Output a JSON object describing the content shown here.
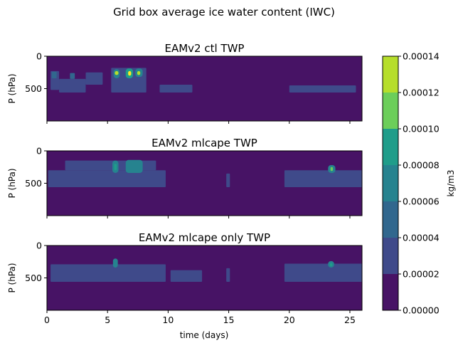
{
  "chart_data": {
    "type": "heatmap",
    "title": "Grid box average ice water content (IWC)",
    "panels": [
      {
        "title": "EAMv2 ctl TWP",
        "ylabel": "P (hPa)",
        "yticks": [
          "0",
          "500"
        ],
        "features": [
          {
            "x0": 0.3,
            "x1": 1.0,
            "y0": 230,
            "y1": 520,
            "level": 1
          },
          {
            "x0": 1.0,
            "x1": 3.2,
            "y0": 350,
            "y1": 560,
            "level": 1
          },
          {
            "x0": 3.2,
            "x1": 4.6,
            "y0": 250,
            "y1": 440,
            "level": 1
          },
          {
            "x0": 5.3,
            "x1": 8.2,
            "y0": 180,
            "y1": 560,
            "level": 1
          },
          {
            "x0": 9.3,
            "x1": 12.0,
            "y0": 440,
            "y1": 560,
            "level": 1
          },
          {
            "x0": 20.0,
            "x1": 25.5,
            "y0": 450,
            "y1": 560,
            "level": 1
          },
          {
            "x0": 0.4,
            "x1": 0.8,
            "y0": 240,
            "y1": 340,
            "level": 2
          },
          {
            "x0": 1.9,
            "x1": 2.3,
            "y0": 260,
            "y1": 350,
            "level": 2
          },
          {
            "x0": 5.5,
            "x1": 6.0,
            "y0": 200,
            "y1": 340,
            "level": 3
          },
          {
            "x0": 6.5,
            "x1": 7.1,
            "y0": 190,
            "y1": 340,
            "level": 4
          },
          {
            "x0": 7.3,
            "x1": 7.9,
            "y0": 190,
            "y1": 320,
            "level": 3
          },
          {
            "x0": 5.6,
            "x1": 5.9,
            "y0": 230,
            "y1": 290,
            "level": 6
          },
          {
            "x0": 6.7,
            "x1": 6.95,
            "y0": 230,
            "y1": 300,
            "level": 7
          },
          {
            "x0": 7.45,
            "x1": 7.7,
            "y0": 230,
            "y1": 290,
            "level": 6
          }
        ]
      },
      {
        "title": "EAMv2 mlcape TWP",
        "ylabel": "P (hPa)",
        "yticks": [
          "0",
          "500"
        ],
        "features": [
          {
            "x0": 0.1,
            "x1": 9.8,
            "y0": 300,
            "y1": 560,
            "level": 1
          },
          {
            "x0": 1.5,
            "x1": 9.0,
            "y0": 150,
            "y1": 300,
            "level": 1
          },
          {
            "x0": 14.8,
            "x1": 15.1,
            "y0": 350,
            "y1": 560,
            "level": 1
          },
          {
            "x0": 19.6,
            "x1": 26.0,
            "y0": 300,
            "y1": 560,
            "level": 1
          },
          {
            "x0": 5.4,
            "x1": 5.9,
            "y0": 150,
            "y1": 340,
            "level": 3
          },
          {
            "x0": 6.5,
            "x1": 7.9,
            "y0": 140,
            "y1": 340,
            "level": 3
          },
          {
            "x0": 5.55,
            "x1": 5.75,
            "y0": 200,
            "y1": 300,
            "level": 4
          },
          {
            "x0": 23.2,
            "x1": 23.8,
            "y0": 220,
            "y1": 340,
            "level": 3
          },
          {
            "x0": 23.4,
            "x1": 23.6,
            "y0": 250,
            "y1": 310,
            "level": 5
          }
        ]
      },
      {
        "title": "EAMv2 mlcape only TWP",
        "ylabel": "P (hPa)",
        "yticks": [
          "0",
          "500"
        ],
        "features": [
          {
            "x0": 0.3,
            "x1": 9.8,
            "y0": 290,
            "y1": 560,
            "level": 1
          },
          {
            "x0": 10.2,
            "x1": 12.8,
            "y0": 380,
            "y1": 560,
            "level": 1
          },
          {
            "x0": 14.8,
            "x1": 15.1,
            "y0": 350,
            "y1": 560,
            "level": 1
          },
          {
            "x0": 19.6,
            "x1": 26.0,
            "y0": 280,
            "y1": 560,
            "level": 1
          },
          {
            "x0": 5.45,
            "x1": 5.85,
            "y0": 200,
            "y1": 340,
            "level": 3
          },
          {
            "x0": 23.2,
            "x1": 23.7,
            "y0": 240,
            "y1": 340,
            "level": 3
          },
          {
            "x0": 23.35,
            "x1": 23.55,
            "y0": 270,
            "y1": 320,
            "level": 4
          }
        ]
      }
    ],
    "xlabel": "time (days)",
    "xticks": [
      0,
      5,
      10,
      15,
      20,
      25
    ],
    "xlim": [
      0,
      26
    ],
    "ylim": [
      1000,
      0
    ],
    "colorbar": {
      "label": "kg/m3",
      "levels": [
        0,
        2e-05,
        4e-05,
        6e-05,
        8e-05,
        0.0001,
        0.00012,
        0.00014
      ],
      "ticklabels": [
        "0.00000",
        "0.00002",
        "0.00004",
        "0.00006",
        "0.00008",
        "0.00010",
        "0.00012",
        "0.00014"
      ],
      "colors": [
        "#471365",
        "#3f4a8a",
        "#31678e",
        "#26838f",
        "#1f9d8a",
        "#6cce5a",
        "#b6de2b",
        "#fee825"
      ]
    },
    "background_color": "#471365",
    "grid": false
  }
}
